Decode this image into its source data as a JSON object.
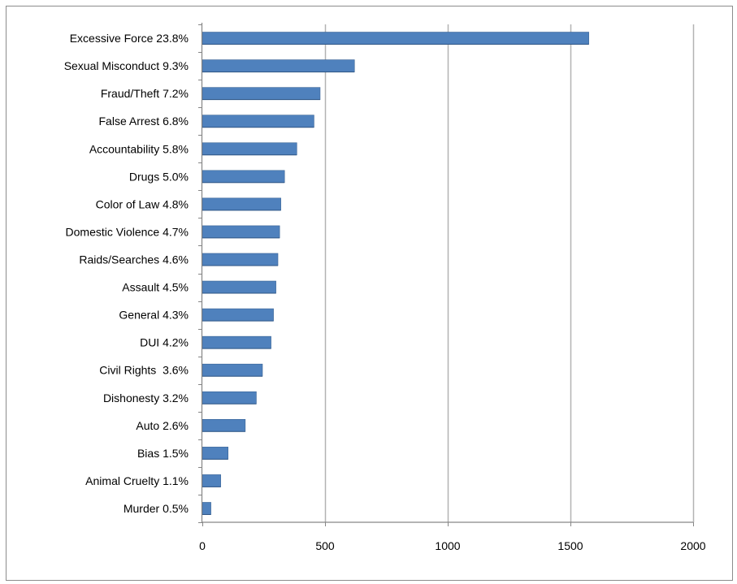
{
  "chart_data": {
    "type": "bar",
    "orientation": "horizontal",
    "categories": [
      "Excessive Force 23.8%",
      "Sexual Misconduct 9.3%",
      "Fraud/Theft 7.2%",
      "False Arrest 6.8%",
      "Accountability 5.8%",
      "Drugs 5.0%",
      "Color of Law 4.8%",
      "Domestic Violence 4.7%",
      "Raids/Searches 4.6%",
      "Assault 4.5%",
      "General 4.3%",
      "DUI 4.2%",
      "Civil Rights  3.6%",
      "Dishonesty 3.2%",
      "Auto 2.6%",
      "Bias 1.5%",
      "Animal Cruelty 1.1%",
      "Murder 0.5%"
    ],
    "values": [
      1575,
      620,
      480,
      455,
      385,
      335,
      320,
      315,
      308,
      300,
      290,
      280,
      245,
      220,
      175,
      105,
      75,
      35
    ],
    "title": "",
    "xlabel": "",
    "ylabel": "",
    "xlim": [
      0,
      2000
    ],
    "x_ticks": [
      "0",
      "500",
      "1000",
      "1500",
      "2000"
    ],
    "x_tick_values": [
      0,
      500,
      1000,
      1500,
      2000
    ],
    "grid": "vertical major gridlines",
    "legend": "none",
    "colors": {
      "bar_fill": "#4f81bd",
      "bar_edge": "#3a6496",
      "gridline": "#b3b3b3",
      "axis": "#868686",
      "frame": "#8c8c8c"
    }
  }
}
